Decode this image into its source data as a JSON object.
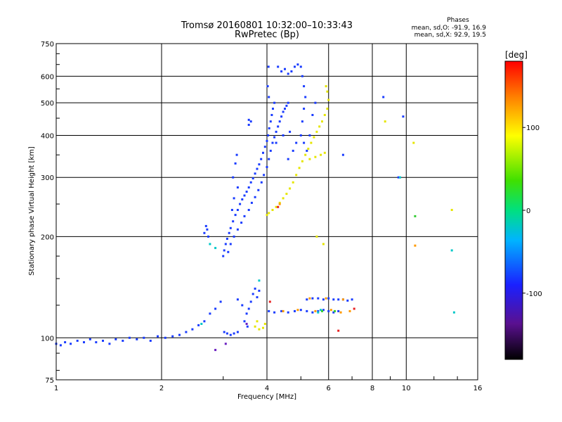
{
  "chart_data": {
    "type": "scatter",
    "title": "Tromsø 20160801 10:32:00–10:33:43",
    "subtitle": "RwPretec (Bp)",
    "stats": {
      "heading": "Phases",
      "line_o": "mean, sd,O: -91.9, 16.9",
      "line_x": "mean, sd,X:  92.9, 19.5"
    },
    "xlabel": "Frequency [MHz]",
    "ylabel": "Stationary phase Virtual Height [km]",
    "x_scale": "log",
    "y_scale": "log",
    "xlim": [
      1,
      16
    ],
    "ylim": [
      75,
      750
    ],
    "x_ticks": [
      1,
      2,
      4,
      6,
      8,
      10,
      16
    ],
    "x_tick_labels": [
      "1",
      "2",
      "4",
      "6",
      "8",
      "10",
      "16"
    ],
    "y_ticks": [
      75,
      100,
      200,
      300,
      400,
      500,
      600,
      750
    ],
    "y_tick_labels": [
      "75",
      "100",
      "200",
      "300",
      "400",
      "500",
      "600",
      "750"
    ],
    "grid": true,
    "colorbar": {
      "label": "[deg]",
      "range": [
        -180,
        180
      ],
      "ticks": [
        100,
        0,
        -100
      ],
      "tick_labels": [
        "100",
        "0",
        "-100"
      ],
      "colormap": "rainbow (black-purple-blue-cyan-green-yellow-orange-red)"
    },
    "series": [
      {
        "color": "#1a3cff",
        "points": [
          [
            1.0,
            96
          ],
          [
            1.03,
            95
          ],
          [
            1.06,
            97
          ],
          [
            1.1,
            96
          ],
          [
            1.15,
            98
          ],
          [
            1.2,
            97
          ],
          [
            1.25,
            99
          ],
          [
            1.3,
            97
          ],
          [
            1.36,
            98
          ],
          [
            1.42,
            96
          ],
          [
            1.48,
            99
          ],
          [
            1.55,
            98
          ],
          [
            1.62,
            100
          ],
          [
            1.7,
            99
          ],
          [
            1.78,
            100
          ],
          [
            1.86,
            98
          ],
          [
            1.95,
            101
          ],
          [
            2.05,
            100
          ],
          [
            2.15,
            101
          ],
          [
            2.25,
            102
          ],
          [
            2.35,
            104
          ],
          [
            2.45,
            106
          ],
          [
            2.55,
            109
          ],
          [
            2.65,
            112
          ],
          [
            2.75,
            118
          ],
          [
            2.85,
            122
          ],
          [
            2.95,
            128
          ],
          [
            3.02,
            104
          ],
          [
            3.08,
            103
          ],
          [
            3.15,
            102
          ],
          [
            3.22,
            103
          ],
          [
            3.3,
            104
          ],
          [
            2.65,
            205
          ],
          [
            2.7,
            210
          ],
          [
            2.72,
            200
          ],
          [
            2.68,
            215
          ],
          [
            3.0,
            175
          ],
          [
            3.02,
            182
          ],
          [
            3.05,
            190
          ],
          [
            3.08,
            197
          ],
          [
            3.12,
            205
          ],
          [
            3.15,
            212
          ],
          [
            3.2,
            222
          ],
          [
            3.25,
            232
          ],
          [
            3.3,
            240
          ],
          [
            3.35,
            250
          ],
          [
            3.4,
            258
          ],
          [
            3.45,
            265
          ],
          [
            3.5,
            272
          ],
          [
            3.55,
            280
          ],
          [
            3.6,
            290
          ],
          [
            3.65,
            298
          ],
          [
            3.7,
            308
          ],
          [
            3.75,
            318
          ],
          [
            3.8,
            328
          ],
          [
            3.85,
            340
          ],
          [
            3.9,
            355
          ],
          [
            3.95,
            370
          ],
          [
            4.0,
            385
          ],
          [
            4.03,
            400
          ],
          [
            4.06,
            420
          ],
          [
            4.1,
            440
          ],
          [
            4.13,
            460
          ],
          [
            4.16,
            480
          ],
          [
            4.2,
            500
          ],
          [
            4.05,
            520
          ],
          [
            4.02,
            560
          ],
          [
            4.04,
            640
          ],
          [
            3.1,
            180
          ],
          [
            3.15,
            190
          ],
          [
            3.22,
            200
          ],
          [
            3.3,
            210
          ],
          [
            3.38,
            220
          ],
          [
            3.45,
            230
          ],
          [
            3.55,
            240
          ],
          [
            3.62,
            252
          ],
          [
            3.7,
            262
          ],
          [
            3.78,
            275
          ],
          [
            3.86,
            290
          ],
          [
            3.92,
            305
          ],
          [
            4.0,
            322
          ],
          [
            4.05,
            340
          ],
          [
            4.1,
            360
          ],
          [
            4.15,
            380
          ],
          [
            4.2,
            395
          ],
          [
            4.25,
            410
          ],
          [
            4.3,
            425
          ],
          [
            4.35,
            440
          ],
          [
            4.4,
            455
          ],
          [
            4.45,
            470
          ],
          [
            4.5,
            480
          ],
          [
            4.55,
            490
          ],
          [
            4.6,
            500
          ],
          [
            3.2,
            300
          ],
          [
            3.25,
            330
          ],
          [
            3.28,
            350
          ],
          [
            3.3,
            280
          ],
          [
            3.22,
            260
          ],
          [
            3.18,
            240
          ],
          [
            3.55,
            445
          ],
          [
            3.6,
            440
          ],
          [
            3.55,
            430
          ],
          [
            4.3,
            640
          ],
          [
            4.4,
            620
          ],
          [
            4.5,
            630
          ],
          [
            4.6,
            610
          ],
          [
            4.7,
            620
          ],
          [
            4.8,
            640
          ],
          [
            4.9,
            650
          ],
          [
            5.0,
            640
          ],
          [
            5.05,
            600
          ],
          [
            5.1,
            560
          ],
          [
            5.15,
            520
          ],
          [
            5.1,
            480
          ],
          [
            5.05,
            440
          ],
          [
            5.0,
            400
          ],
          [
            5.1,
            380
          ],
          [
            5.2,
            360
          ],
          [
            5.3,
            400
          ],
          [
            5.4,
            460
          ],
          [
            5.5,
            500
          ],
          [
            4.25,
            380
          ],
          [
            4.45,
            400
          ],
          [
            4.65,
            410
          ],
          [
            4.85,
            380
          ],
          [
            4.75,
            360
          ],
          [
            4.6,
            340
          ],
          [
            3.6,
            128
          ],
          [
            3.65,
            135
          ],
          [
            3.7,
            140
          ],
          [
            3.75,
            132
          ],
          [
            3.8,
            138
          ],
          [
            3.55,
            122
          ],
          [
            3.5,
            118
          ],
          [
            3.4,
            125
          ],
          [
            3.3,
            130
          ],
          [
            3.45,
            112
          ],
          [
            3.52,
            108
          ],
          [
            4.05,
            120
          ],
          [
            4.2,
            119
          ],
          [
            4.4,
            120
          ],
          [
            4.6,
            119
          ],
          [
            4.8,
            120
          ],
          [
            5.0,
            121
          ],
          [
            5.2,
            120
          ],
          [
            5.4,
            119
          ],
          [
            5.6,
            120
          ],
          [
            5.8,
            121
          ],
          [
            6.0,
            120
          ],
          [
            6.2,
            119
          ],
          [
            6.4,
            120
          ],
          [
            5.2,
            130
          ],
          [
            5.4,
            131
          ],
          [
            5.6,
            131
          ],
          [
            5.8,
            130
          ],
          [
            6.0,
            131
          ],
          [
            6.2,
            130
          ],
          [
            6.4,
            130
          ],
          [
            6.6,
            130
          ],
          [
            6.8,
            129
          ],
          [
            7.0,
            130
          ],
          [
            8.6,
            520
          ],
          [
            9.8,
            455
          ],
          [
            6.6,
            350
          ],
          [
            9.5,
            300
          ]
        ]
      },
      {
        "color": "#e6e600",
        "points": [
          [
            4.05,
            235
          ],
          [
            4.15,
            240
          ],
          [
            4.25,
            245
          ],
          [
            4.35,
            252
          ],
          [
            4.45,
            260
          ],
          [
            4.55,
            268
          ],
          [
            4.65,
            278
          ],
          [
            4.75,
            290
          ],
          [
            4.85,
            305
          ],
          [
            4.95,
            320
          ],
          [
            5.05,
            335
          ],
          [
            5.15,
            350
          ],
          [
            5.25,
            365
          ],
          [
            5.35,
            380
          ],
          [
            5.45,
            395
          ],
          [
            5.55,
            410
          ],
          [
            5.65,
            425
          ],
          [
            5.75,
            440
          ],
          [
            5.85,
            460
          ],
          [
            5.95,
            480
          ],
          [
            6.0,
            510
          ],
          [
            5.95,
            540
          ],
          [
            5.9,
            560
          ],
          [
            5.3,
            340
          ],
          [
            5.5,
            345
          ],
          [
            5.7,
            350
          ],
          [
            5.85,
            355
          ],
          [
            5.8,
            190
          ],
          [
            5.55,
            200
          ],
          [
            4.0,
            232
          ],
          [
            3.7,
            108
          ],
          [
            3.8,
            106
          ],
          [
            3.9,
            107
          ],
          [
            3.95,
            110
          ],
          [
            3.75,
            112
          ],
          [
            8.7,
            440
          ],
          [
            10.5,
            380
          ],
          [
            13.5,
            240
          ]
        ]
      },
      {
        "color": "#ff9900",
        "points": [
          [
            4.45,
            120
          ],
          [
            4.9,
            121
          ],
          [
            5.5,
            120
          ],
          [
            6.1,
            121
          ],
          [
            6.5,
            119
          ],
          [
            6.9,
            120
          ],
          [
            5.3,
            131
          ],
          [
            5.9,
            131
          ],
          [
            6.6,
            130
          ],
          [
            4.35,
            250
          ],
          [
            10.6,
            188
          ]
        ]
      },
      {
        "color": "#00c8c8",
        "points": [
          [
            2.6,
            110
          ],
          [
            2.75,
            190
          ],
          [
            2.85,
            185
          ],
          [
            3.8,
            148
          ],
          [
            5.6,
            119
          ],
          [
            5.7,
            121
          ],
          [
            13.5,
            182
          ],
          [
            13.7,
            119
          ],
          [
            9.6,
            300
          ]
        ]
      },
      {
        "color": "#33cc33",
        "points": [
          [
            5.75,
            120
          ],
          [
            6.25,
            120
          ],
          [
            10.6,
            230
          ]
        ]
      },
      {
        "color": "#e82020",
        "points": [
          [
            4.08,
            128
          ],
          [
            4.3,
            245
          ],
          [
            6.4,
            105
          ],
          [
            7.1,
            122
          ]
        ]
      },
      {
        "color": "#6a1fc0",
        "points": [
          [
            2.85,
            92
          ],
          [
            3.05,
            96
          ],
          [
            3.5,
            110
          ]
        ]
      }
    ]
  }
}
